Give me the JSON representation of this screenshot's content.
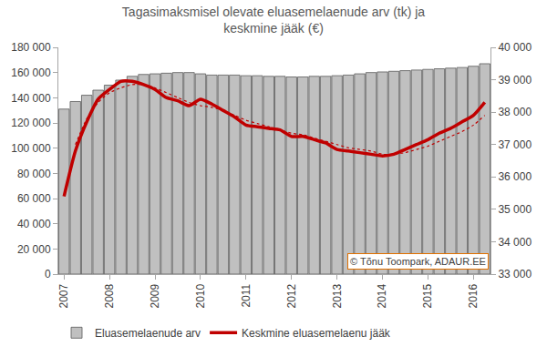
{
  "chart_data": {
    "type": "bar",
    "title": "Tagasimaksmisel olevate eluasemelaenude arv (tk) ja\nkeskmine jääk (€)",
    "categories": [
      "2007",
      null,
      null,
      null,
      "2008",
      null,
      null,
      null,
      "2009",
      null,
      null,
      null,
      "2010",
      null,
      null,
      null,
      "2011",
      null,
      null,
      null,
      "2012",
      null,
      null,
      null,
      "2013",
      null,
      null,
      null,
      "2014",
      null,
      null,
      null,
      "2015",
      null,
      null,
      null,
      "2016",
      null
    ],
    "series": [
      {
        "name": "Eluasemelaenude arv",
        "type": "bar",
        "color": "#c0c0c0",
        "values": [
          131000,
          137000,
          142000,
          146000,
          150000,
          154000,
          157000,
          158500,
          159000,
          159500,
          160000,
          160000,
          159000,
          158000,
          158000,
          158000,
          157500,
          157500,
          157000,
          157000,
          156500,
          156500,
          157000,
          157000,
          157500,
          158000,
          159000,
          160000,
          160500,
          161000,
          161500,
          162000,
          162500,
          163000,
          163500,
          164000,
          165000,
          167000
        ]
      },
      {
        "name": "Keskmine eluasemelaenu jääk",
        "type": "line",
        "axis": "y2",
        "color": "#c00000",
        "line_style": "solid",
        "values": [
          35400,
          36800,
          37700,
          38400,
          38700,
          38950,
          38950,
          38850,
          38700,
          38450,
          38350,
          38200,
          38400,
          38250,
          38050,
          37850,
          37600,
          37550,
          37500,
          37450,
          37250,
          37250,
          37150,
          37050,
          36850,
          36800,
          36750,
          36700,
          36650,
          36700,
          36850,
          37000,
          37150,
          37350,
          37500,
          37700,
          37900,
          38300
        ]
      },
      {
        "type": "line",
        "axis": "y2",
        "color": "#c00000",
        "line_style": "dotted",
        "values": [
          null,
          37000,
          37800,
          38300,
          38600,
          38750,
          38850,
          38850,
          38750,
          38600,
          38450,
          38300,
          38200,
          38150,
          38050,
          37900,
          37750,
          37650,
          37550,
          37450,
          37350,
          37300,
          37200,
          37100,
          37000,
          36900,
          36850,
          36800,
          36700,
          36700,
          36750,
          36850,
          36950,
          37100,
          37250,
          37400,
          37600,
          37900
        ]
      }
    ],
    "ylim": [
      0,
      180000
    ],
    "yticks": [
      0,
      {
        "value": 20000,
        "label": "20 000"
      },
      {
        "value": 40000,
        "label": "40 000"
      },
      {
        "value": 60000,
        "label": "60 000"
      },
      {
        "value": 80000,
        "label": "80 000"
      },
      {
        "value": 100000,
        "label": "100 000"
      },
      {
        "value": 120000,
        "label": "120 000"
      },
      {
        "value": 140000,
        "label": "140 000"
      },
      {
        "value": 160000,
        "label": "160 000"
      },
      {
        "value": 180000,
        "label": "180 000"
      }
    ],
    "y2lim": [
      33000,
      40000
    ],
    "y2ticks": [
      {
        "value": 33000,
        "label": "33 000"
      },
      {
        "value": 34000,
        "label": "34 000"
      },
      {
        "value": 35000,
        "label": "35 000"
      },
      {
        "value": 36000,
        "label": "36 000"
      },
      {
        "value": 37000,
        "label": "37 000"
      },
      {
        "value": 38000,
        "label": "38 000"
      },
      {
        "value": 39000,
        "label": "39 000"
      },
      {
        "value": 40000,
        "label": "40 000"
      }
    ],
    "annotations": [
      "© Tõnu Toompark, ADAUR.EE"
    ],
    "legend": "lower left",
    "grid": false
  }
}
